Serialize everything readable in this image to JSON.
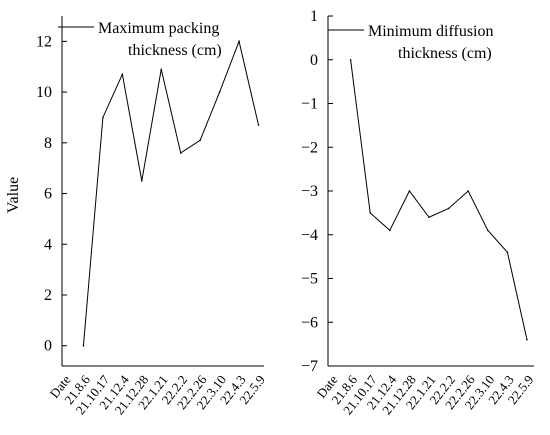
{
  "chart_data": [
    {
      "type": "line",
      "categories": [
        "Date",
        "21.8.6",
        "21.10.17",
        "21.12.4",
        "21.12.28",
        "22.1.21",
        "22.2.2",
        "22.2.26",
        "22.3.10",
        "22.4.3",
        "22.5.9"
      ],
      "series": [
        {
          "name": "Maximum packing thickness (cm)",
          "name_lines": [
            "Maximum packing",
            "thickness (cm)"
          ],
          "x": [
            "21.8.6",
            "21.10.17",
            "21.12.4",
            "21.12.28",
            "22.1.21",
            "22.2.2",
            "22.2.26",
            "22.3.10",
            "22.4.3",
            "22.5.9"
          ],
          "values": [
            0,
            9.0,
            10.7,
            6.5,
            10.9,
            7.6,
            8.1,
            10.0,
            12.0,
            8.7
          ]
        }
      ],
      "ylabel": "Value",
      "ylim": [
        -0.8,
        13
      ],
      "yticks": [
        0,
        2,
        4,
        6,
        8,
        10,
        12
      ],
      "grid": false,
      "legend": "top-right",
      "line_color": "#000000"
    },
    {
      "type": "line",
      "categories": [
        "Date",
        "21.8.6",
        "21.10.17",
        "21.12.4",
        "21.12.28",
        "22.1.21",
        "22.2.2",
        "22.2.26",
        "22.3.10",
        "22.4.3",
        "22.5.9"
      ],
      "series": [
        {
          "name": "Minimum diffusion thickness (cm)",
          "name_lines": [
            "Minimum diffusion",
            "thickness (cm)"
          ],
          "x": [
            "21.8.6",
            "21.10.17",
            "21.12.4",
            "21.12.28",
            "22.1.21",
            "22.2.2",
            "22.2.26",
            "22.3.10",
            "22.4.3",
            "22.5.9"
          ],
          "values": [
            0,
            -3.5,
            -3.9,
            -3.0,
            -3.6,
            -3.4,
            -3.0,
            -3.9,
            -4.4,
            -6.4
          ]
        }
      ],
      "ylabel": "",
      "ylim": [
        -7,
        1
      ],
      "yticks": [
        1,
        0,
        -1,
        -2,
        -3,
        -4,
        -5,
        -6,
        -7
      ],
      "grid": false,
      "legend": "top-right",
      "line_color": "#000000"
    }
  ]
}
